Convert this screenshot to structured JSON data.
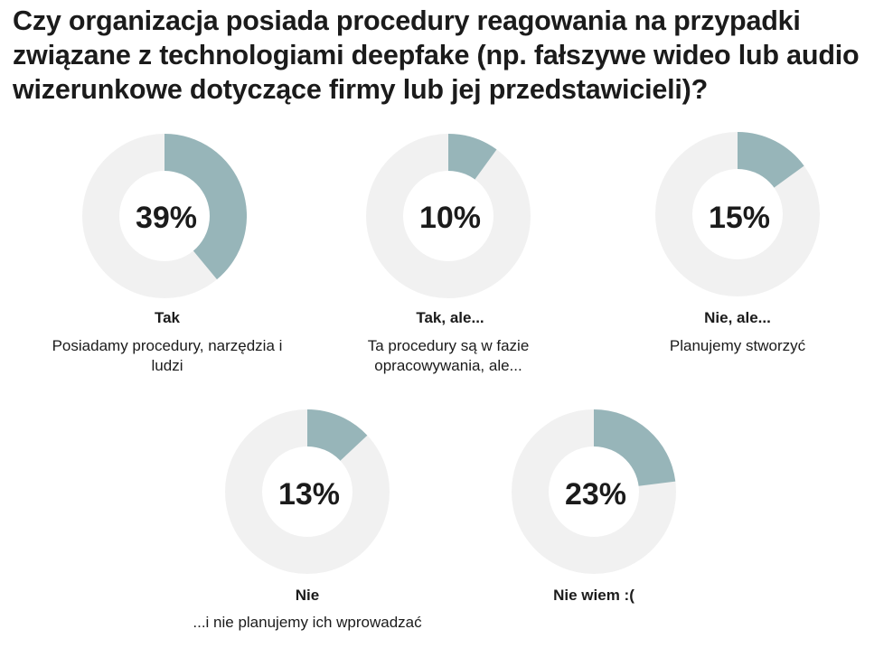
{
  "title": "Czy organizacja posiada procedury reagowania na przypadki związane z technologiami deepfake (np. fałszywe wideo lub audio wizerunkowe dotyczące firmy lub jej przedstawicieli)?",
  "colors": {
    "accent": "#97b5b9",
    "track": "#f1f1f1",
    "hole": "#ffffff",
    "text": "#1b1b1b"
  },
  "chart_data": {
    "type": "pie",
    "variant": "donut-small-multiples",
    "title": "Czy organizacja posiada procedury reagowania na przypadki związane z technologiami deepfake (np. fałszywe wideo lub audio wizerunkowe dotyczące firmy lub jej przedstawicieli)?",
    "items": [
      {
        "value": 39,
        "value_label": "39%",
        "label": "Tak",
        "description": "Posiadamy procedury, narzędzia i ludzi"
      },
      {
        "value": 10,
        "value_label": "10%",
        "label": "Tak, ale...",
        "description": "Ta procedury są w fazie opracowywania, ale..."
      },
      {
        "value": 15,
        "value_label": "15%",
        "label": "Nie, ale...",
        "description": "Planujemy stworzyć"
      },
      {
        "value": 13,
        "value_label": "13%",
        "label": "Nie",
        "description": "...i nie planujemy ich wprowadzać"
      },
      {
        "value": 23,
        "value_label": "23%",
        "label": "Nie wiem :(",
        "description": ""
      }
    ]
  }
}
